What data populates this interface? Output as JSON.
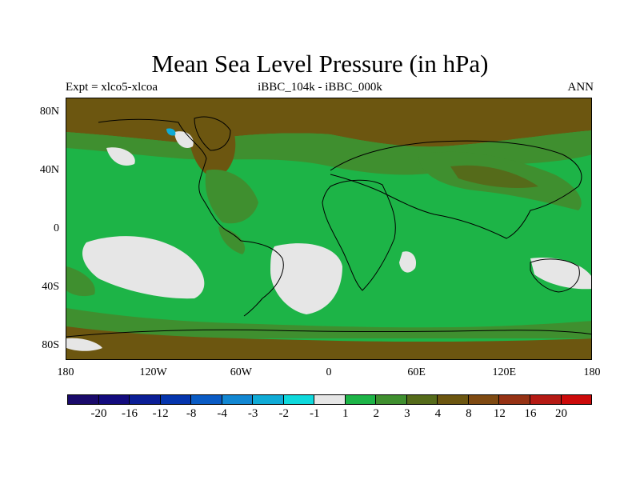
{
  "title": "Mean Sea Level Pressure (in hPa)",
  "left_string": "Expt = xlco5-xlcoa",
  "center_string": "iBBC_104k - iBBC_000k",
  "right_string": "ANN",
  "lat_ticks": [
    {
      "label": "80N",
      "lat": 80
    },
    {
      "label": "40N",
      "lat": 40
    },
    {
      "label": "0",
      "lat": 0
    },
    {
      "label": "40S",
      "lat": -40
    },
    {
      "label": "80S",
      "lat": -80
    }
  ],
  "lon_ticks": [
    {
      "label": "180",
      "lon": -180
    },
    {
      "label": "120W",
      "lon": -120
    },
    {
      "label": "60W",
      "lon": -60
    },
    {
      "label": "0",
      "lon": 0
    },
    {
      "label": "60E",
      "lon": 60
    },
    {
      "label": "120E",
      "lon": 120
    },
    {
      "label": "180",
      "lon": 180
    }
  ],
  "map_extent": {
    "lon": [
      -180,
      180
    ],
    "lat": [
      -90,
      90
    ]
  },
  "colorbar": {
    "colors": [
      "#1a0a6b",
      "#130b7e",
      "#0b1e96",
      "#0535ad",
      "#0a5bc4",
      "#1287d2",
      "#10abd6",
      "#0fd9dc",
      "#e6e6e6",
      "#1db447",
      "#3f8f2f",
      "#556b1a",
      "#6c5610",
      "#7f4a12",
      "#963214",
      "#b51a14",
      "#cc0a0a"
    ],
    "labels": [
      "-20",
      "-16",
      "-12",
      "-8",
      "-4",
      "-3",
      "-2",
      "-1",
      "1",
      "2",
      "3",
      "4",
      "8",
      "12",
      "16",
      "20"
    ]
  },
  "fills": {
    "neutral": "#e6e6e6",
    "positive_low": "#1db447",
    "positive_mid": "#3f8f2f",
    "positive_high": "#6c5610",
    "negative": "#10abd6"
  }
}
